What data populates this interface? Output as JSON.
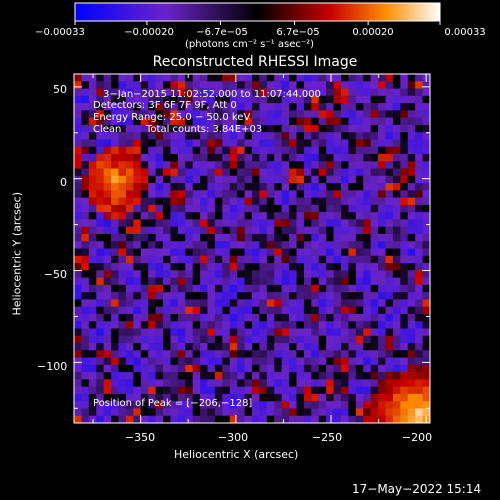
{
  "colorbar": {
    "tick_labels": [
      "−0.00033",
      "−0.00020",
      "−6.7e−05",
      "6.7e−05",
      "0.00020",
      "0.00033"
    ],
    "unit_label": "(photons cm⁻² s⁻¹ asec⁻²)",
    "range": [
      -0.00033,
      0.00033
    ],
    "colors": [
      "#0000ff",
      "#6a24c8",
      "#000000",
      "#c80000",
      "#ff8c00",
      "#ffffff"
    ]
  },
  "chart_data": {
    "type": "heatmap",
    "title": "Reconstructed RHESSI Image",
    "xlabel": "Heliocentric X (arcsec)",
    "ylabel": "Heliocentric Y (arcsec)",
    "xlim": [
      -385,
      -198
    ],
    "ylim": [
      -133,
      57
    ],
    "xticks": [
      -350,
      -300,
      -250,
      -200
    ],
    "xtick_labels": [
      "−350",
      "−300",
      "−250",
      "−200"
    ],
    "yticks": [
      50,
      0,
      -50,
      -100
    ],
    "ytick_labels": [
      "50",
      "0",
      "−50",
      "−100"
    ],
    "grid": false,
    "peak": [
      -206,
      -128
    ],
    "annotations": {
      "time_range": "3−Jan−2015 11:02:52.000 to 11:07:44.000",
      "detectors": "Detectors: 3F 6F 7F 9F, Att 0",
      "energy_range": "Energy Range: 25.0 − 50.0 keV",
      "method": "Clean",
      "total_counts": "Total counts: 3.84E+03",
      "peak_position": "Position of Peak = [−206,−128]"
    }
  },
  "footer": {
    "timestamp": "17−May−2022 15:14"
  }
}
